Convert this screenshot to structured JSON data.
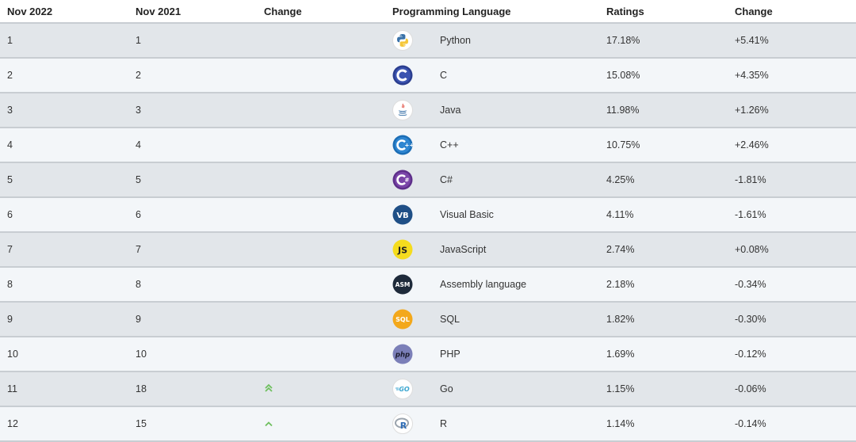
{
  "headers": [
    "Nov 2022",
    "Nov 2021",
    "Change",
    "Programming Language",
    "Ratings",
    "Change"
  ],
  "rows": [
    {
      "nov2022": "1",
      "nov2021": "1",
      "trend": "",
      "language": "Python",
      "logo": "python-logo-icon",
      "ratings": "17.18%",
      "change": "+5.41%"
    },
    {
      "nov2022": "2",
      "nov2021": "2",
      "trend": "",
      "language": "C",
      "logo": "c-logo-icon",
      "ratings": "15.08%",
      "change": "+4.35%"
    },
    {
      "nov2022": "3",
      "nov2021": "3",
      "trend": "",
      "language": "Java",
      "logo": "java-logo-icon",
      "ratings": "11.98%",
      "change": "+1.26%"
    },
    {
      "nov2022": "4",
      "nov2021": "4",
      "trend": "",
      "language": "C++",
      "logo": "cpp-logo-icon",
      "ratings": "10.75%",
      "change": "+2.46%"
    },
    {
      "nov2022": "5",
      "nov2021": "5",
      "trend": "",
      "language": "C#",
      "logo": "csharp-logo-icon",
      "ratings": "4.25%",
      "change": "-1.81%"
    },
    {
      "nov2022": "6",
      "nov2021": "6",
      "trend": "",
      "language": "Visual Basic",
      "logo": "vb-logo-icon",
      "ratings": "4.11%",
      "change": "-1.61%"
    },
    {
      "nov2022": "7",
      "nov2021": "7",
      "trend": "",
      "language": "JavaScript",
      "logo": "js-logo-icon",
      "ratings": "2.74%",
      "change": "+0.08%"
    },
    {
      "nov2022": "8",
      "nov2021": "8",
      "trend": "",
      "language": "Assembly language",
      "logo": "asm-logo-icon",
      "ratings": "2.18%",
      "change": "-0.34%"
    },
    {
      "nov2022": "9",
      "nov2021": "9",
      "trend": "",
      "language": "SQL",
      "logo": "sql-logo-icon",
      "ratings": "1.82%",
      "change": "-0.30%"
    },
    {
      "nov2022": "10",
      "nov2021": "10",
      "trend": "",
      "language": "PHP",
      "logo": "php-logo-icon",
      "ratings": "1.69%",
      "change": "-0.12%"
    },
    {
      "nov2022": "11",
      "nov2021": "18",
      "trend": "double-up-arrow-icon",
      "language": "Go",
      "logo": "go-logo-icon",
      "ratings": "1.15%",
      "change": "-0.06%"
    },
    {
      "nov2022": "12",
      "nov2021": "15",
      "trend": "up-arrow-icon",
      "language": "R",
      "logo": "r-logo-icon",
      "ratings": "1.14%",
      "change": "-0.14%"
    }
  ],
  "logo_text": {
    "vb": "VB",
    "js": "JS",
    "asm": "ASM",
    "sql": "SQL",
    "php": "php",
    "go": "GO",
    "r": "R"
  },
  "colors": {
    "row_odd": "#e2e6ea",
    "row_even": "#f3f6f9",
    "divider": "#c8cdd2",
    "trend_up": "#6fbf5f"
  }
}
